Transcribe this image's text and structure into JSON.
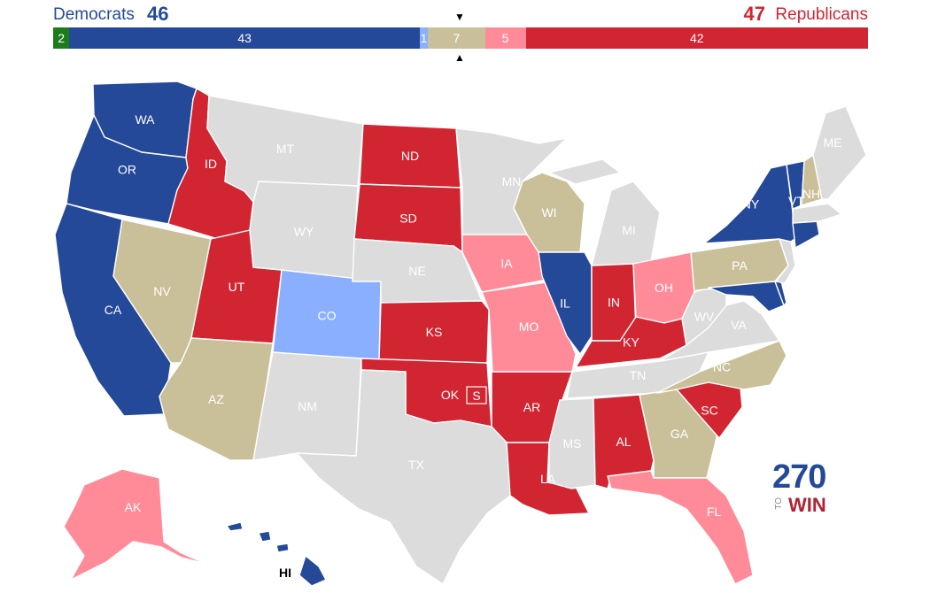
{
  "header": {
    "dem_label": "Democrats",
    "dem_count": "46",
    "rep_count": "47",
    "rep_label": "Republicans",
    "marker_top": "▼",
    "marker_bottom": "▲"
  },
  "bar_segments": [
    {
      "id": "ind",
      "label": "2",
      "value": 2,
      "color": "#1a7d1a"
    },
    {
      "id": "safe-d",
      "label": "43",
      "value": 43,
      "color": "#244999"
    },
    {
      "id": "lean-d",
      "label": "1",
      "value": 1,
      "color": "#8aafff"
    },
    {
      "id": "tossup",
      "label": "7",
      "value": 7,
      "color": "#c9c09a"
    },
    {
      "id": "lean-r",
      "label": "5",
      "value": 5,
      "color": "#ff8b98"
    },
    {
      "id": "safe-r",
      "label": "42",
      "value": 42,
      "color": "#d22532"
    }
  ],
  "colors": {
    "safe_d": "#244999",
    "lean_d": "#8aafff",
    "tossup": "#c9c09a",
    "lean_r": "#ff8b98",
    "safe_r": "#d22532",
    "no_race": "#dcdcdc"
  },
  "states": [
    {
      "id": "WA",
      "label": "WA",
      "rating": "safe_d"
    },
    {
      "id": "OR",
      "label": "OR",
      "rating": "safe_d"
    },
    {
      "id": "CA",
      "label": "CA",
      "rating": "safe_d"
    },
    {
      "id": "ID",
      "label": "ID",
      "rating": "safe_r"
    },
    {
      "id": "NV",
      "label": "NV",
      "rating": "tossup"
    },
    {
      "id": "UT",
      "label": "UT",
      "rating": "safe_r"
    },
    {
      "id": "AZ",
      "label": "AZ",
      "rating": "tossup"
    },
    {
      "id": "MT",
      "label": "MT",
      "rating": "no_race"
    },
    {
      "id": "WY",
      "label": "WY",
      "rating": "no_race"
    },
    {
      "id": "CO",
      "label": "CO",
      "rating": "lean_d"
    },
    {
      "id": "NM",
      "label": "NM",
      "rating": "no_race"
    },
    {
      "id": "ND",
      "label": "ND",
      "rating": "safe_r"
    },
    {
      "id": "SD",
      "label": "SD",
      "rating": "safe_r"
    },
    {
      "id": "NE",
      "label": "NE",
      "rating": "no_race"
    },
    {
      "id": "KS",
      "label": "KS",
      "rating": "safe_r"
    },
    {
      "id": "OK",
      "label": "OK",
      "rating": "safe_r"
    },
    {
      "id": "TX",
      "label": "TX",
      "rating": "no_race"
    },
    {
      "id": "MN",
      "label": "MN",
      "rating": "no_race"
    },
    {
      "id": "IA",
      "label": "IA",
      "rating": "lean_r"
    },
    {
      "id": "MO",
      "label": "MO",
      "rating": "lean_r"
    },
    {
      "id": "AR",
      "label": "AR",
      "rating": "safe_r"
    },
    {
      "id": "LA",
      "label": "LA",
      "rating": "safe_r"
    },
    {
      "id": "WI",
      "label": "WI",
      "rating": "tossup"
    },
    {
      "id": "IL",
      "label": "IL",
      "rating": "safe_d"
    },
    {
      "id": "MI",
      "label": "MI",
      "rating": "no_race"
    },
    {
      "id": "IN",
      "label": "IN",
      "rating": "safe_r"
    },
    {
      "id": "OH",
      "label": "OH",
      "rating": "lean_r"
    },
    {
      "id": "KY",
      "label": "KY",
      "rating": "safe_r"
    },
    {
      "id": "TN",
      "label": "TN",
      "rating": "no_race"
    },
    {
      "id": "MS",
      "label": "MS",
      "rating": "no_race"
    },
    {
      "id": "AL",
      "label": "AL",
      "rating": "safe_r"
    },
    {
      "id": "GA",
      "label": "GA",
      "rating": "tossup"
    },
    {
      "id": "FL",
      "label": "FL",
      "rating": "lean_r"
    },
    {
      "id": "SC",
      "label": "SC",
      "rating": "safe_r"
    },
    {
      "id": "NC",
      "label": "NC",
      "rating": "tossup"
    },
    {
      "id": "VA",
      "label": "VA",
      "rating": "no_race"
    },
    {
      "id": "WV",
      "label": "WV",
      "rating": "no_race"
    },
    {
      "id": "PA",
      "label": "PA",
      "rating": "tossup"
    },
    {
      "id": "NY",
      "label": "NY",
      "rating": "safe_d"
    },
    {
      "id": "VT",
      "label": "VT",
      "rating": "safe_d"
    },
    {
      "id": "NH",
      "label": "NH",
      "rating": "tossup"
    },
    {
      "id": "ME",
      "label": "ME",
      "rating": "no_race"
    },
    {
      "id": "MD",
      "label": "",
      "rating": "safe_d"
    },
    {
      "id": "CT",
      "label": "",
      "rating": "safe_d"
    },
    {
      "id": "MA",
      "label": "",
      "rating": "no_race"
    },
    {
      "id": "NJ",
      "label": "",
      "rating": "no_race"
    },
    {
      "id": "DE",
      "label": "",
      "rating": "safe_d"
    },
    {
      "id": "AK",
      "label": "AK",
      "rating": "lean_r"
    },
    {
      "id": "HI",
      "label": "HI",
      "rating": "safe_d"
    }
  ],
  "special_election_badge": "S",
  "logo": {
    "number": "270",
    "to": "TO",
    "win": "WIN"
  }
}
